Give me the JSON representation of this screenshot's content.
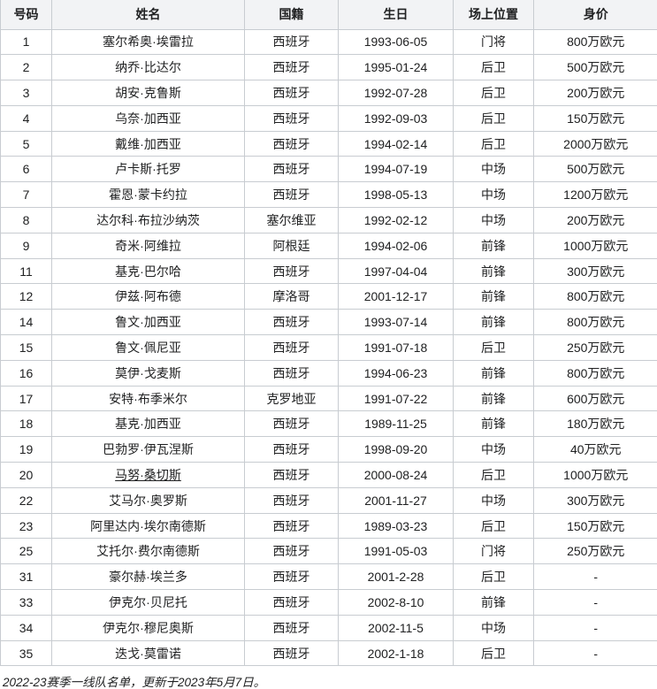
{
  "table": {
    "columns": [
      "号码",
      "姓名",
      "国籍",
      "生日",
      "场上位置",
      "身价"
    ],
    "rows": [
      {
        "number": "1",
        "name": "塞尔希奥·埃雷拉",
        "nationality": "西班牙",
        "birthday": "1993-06-05",
        "position": "门将",
        "value": "800万欧元",
        "link": false
      },
      {
        "number": "2",
        "name": "纳乔·比达尔",
        "nationality": "西班牙",
        "birthday": "1995-01-24",
        "position": "后卫",
        "value": "500万欧元",
        "link": false
      },
      {
        "number": "3",
        "name": "胡安·克鲁斯",
        "nationality": "西班牙",
        "birthday": "1992-07-28",
        "position": "后卫",
        "value": "200万欧元",
        "link": false
      },
      {
        "number": "4",
        "name": "乌奈·加西亚",
        "nationality": "西班牙",
        "birthday": "1992-09-03",
        "position": "后卫",
        "value": "150万欧元",
        "link": false
      },
      {
        "number": "5",
        "name": "戴维·加西亚",
        "nationality": "西班牙",
        "birthday": "1994-02-14",
        "position": "后卫",
        "value": "2000万欧元",
        "link": false
      },
      {
        "number": "6",
        "name": "卢卡斯·托罗",
        "nationality": "西班牙",
        "birthday": "1994-07-19",
        "position": "中场",
        "value": "500万欧元",
        "link": false
      },
      {
        "number": "7",
        "name": "霍恩·蒙卡约拉",
        "nationality": "西班牙",
        "birthday": "1998-05-13",
        "position": "中场",
        "value": "1200万欧元",
        "link": false
      },
      {
        "number": "8",
        "name": "达尔科·布拉沙纳茨",
        "nationality": "塞尔维亚",
        "birthday": "1992-02-12",
        "position": "中场",
        "value": "200万欧元",
        "link": false
      },
      {
        "number": "9",
        "name": "奇米·阿维拉",
        "nationality": "阿根廷",
        "birthday": "1994-02-06",
        "position": "前锋",
        "value": "1000万欧元",
        "link": false
      },
      {
        "number": "11",
        "name": "基克·巴尔哈",
        "nationality": "西班牙",
        "birthday": "1997-04-04",
        "position": "前锋",
        "value": "300万欧元",
        "link": false
      },
      {
        "number": "12",
        "name": "伊兹·阿布德",
        "nationality": "摩洛哥",
        "birthday": "2001-12-17",
        "position": "前锋",
        "value": "800万欧元",
        "link": false
      },
      {
        "number": "14",
        "name": "鲁文·加西亚",
        "nationality": "西班牙",
        "birthday": "1993-07-14",
        "position": "前锋",
        "value": "800万欧元",
        "link": false
      },
      {
        "number": "15",
        "name": "鲁文·佩尼亚",
        "nationality": "西班牙",
        "birthday": "1991-07-18",
        "position": "后卫",
        "value": "250万欧元",
        "link": false
      },
      {
        "number": "16",
        "name": "莫伊·戈麦斯",
        "nationality": "西班牙",
        "birthday": "1994-06-23",
        "position": "前锋",
        "value": "800万欧元",
        "link": false
      },
      {
        "number": "17",
        "name": "安特·布季米尔",
        "nationality": "克罗地亚",
        "birthday": "1991-07-22",
        "position": "前锋",
        "value": "600万欧元",
        "link": false
      },
      {
        "number": "18",
        "name": "基克·加西亚",
        "nationality": "西班牙",
        "birthday": "1989-11-25",
        "position": "前锋",
        "value": "180万欧元",
        "link": false
      },
      {
        "number": "19",
        "name": "巴勃罗·伊瓦涅斯",
        "nationality": "西班牙",
        "birthday": "1998-09-20",
        "position": "中场",
        "value": "40万欧元",
        "link": false
      },
      {
        "number": "20",
        "name": "马努·桑切斯",
        "nationality": "西班牙",
        "birthday": "2000-08-24",
        "position": "后卫",
        "value": "1000万欧元",
        "link": true
      },
      {
        "number": "22",
        "name": "艾马尔·奥罗斯",
        "nationality": "西班牙",
        "birthday": "2001-11-27",
        "position": "中场",
        "value": "300万欧元",
        "link": false
      },
      {
        "number": "23",
        "name": "阿里达内·埃尔南德斯",
        "nationality": "西班牙",
        "birthday": "1989-03-23",
        "position": "后卫",
        "value": "150万欧元",
        "link": false
      },
      {
        "number": "25",
        "name": "艾托尔·费尔南德斯",
        "nationality": "西班牙",
        "birthday": "1991-05-03",
        "position": "门将",
        "value": "250万欧元",
        "link": false
      },
      {
        "number": "31",
        "name": "豪尔赫·埃兰多",
        "nationality": "西班牙",
        "birthday": "2001-2-28",
        "position": "后卫",
        "value": "-",
        "link": false
      },
      {
        "number": "33",
        "name": "伊克尔·贝尼托",
        "nationality": "西班牙",
        "birthday": "2002-8-10",
        "position": "前锋",
        "value": "-",
        "link": false
      },
      {
        "number": "34",
        "name": "伊克尔·穆尼奥斯",
        "nationality": "西班牙",
        "birthday": "2002-11-5",
        "position": "中场",
        "value": "-",
        "link": false
      },
      {
        "number": "35",
        "name": "迭戈·莫雷诺",
        "nationality": "西班牙",
        "birthday": "2002-1-18",
        "position": "后卫",
        "value": "-",
        "link": false
      }
    ]
  },
  "footer": {
    "caption": "2022-23赛季一线队名单，更新于2023年5月7日。"
  },
  "colors": {
    "header_bg": "#f2f3f5",
    "border": "#c8ccd1",
    "text": "#202122"
  }
}
